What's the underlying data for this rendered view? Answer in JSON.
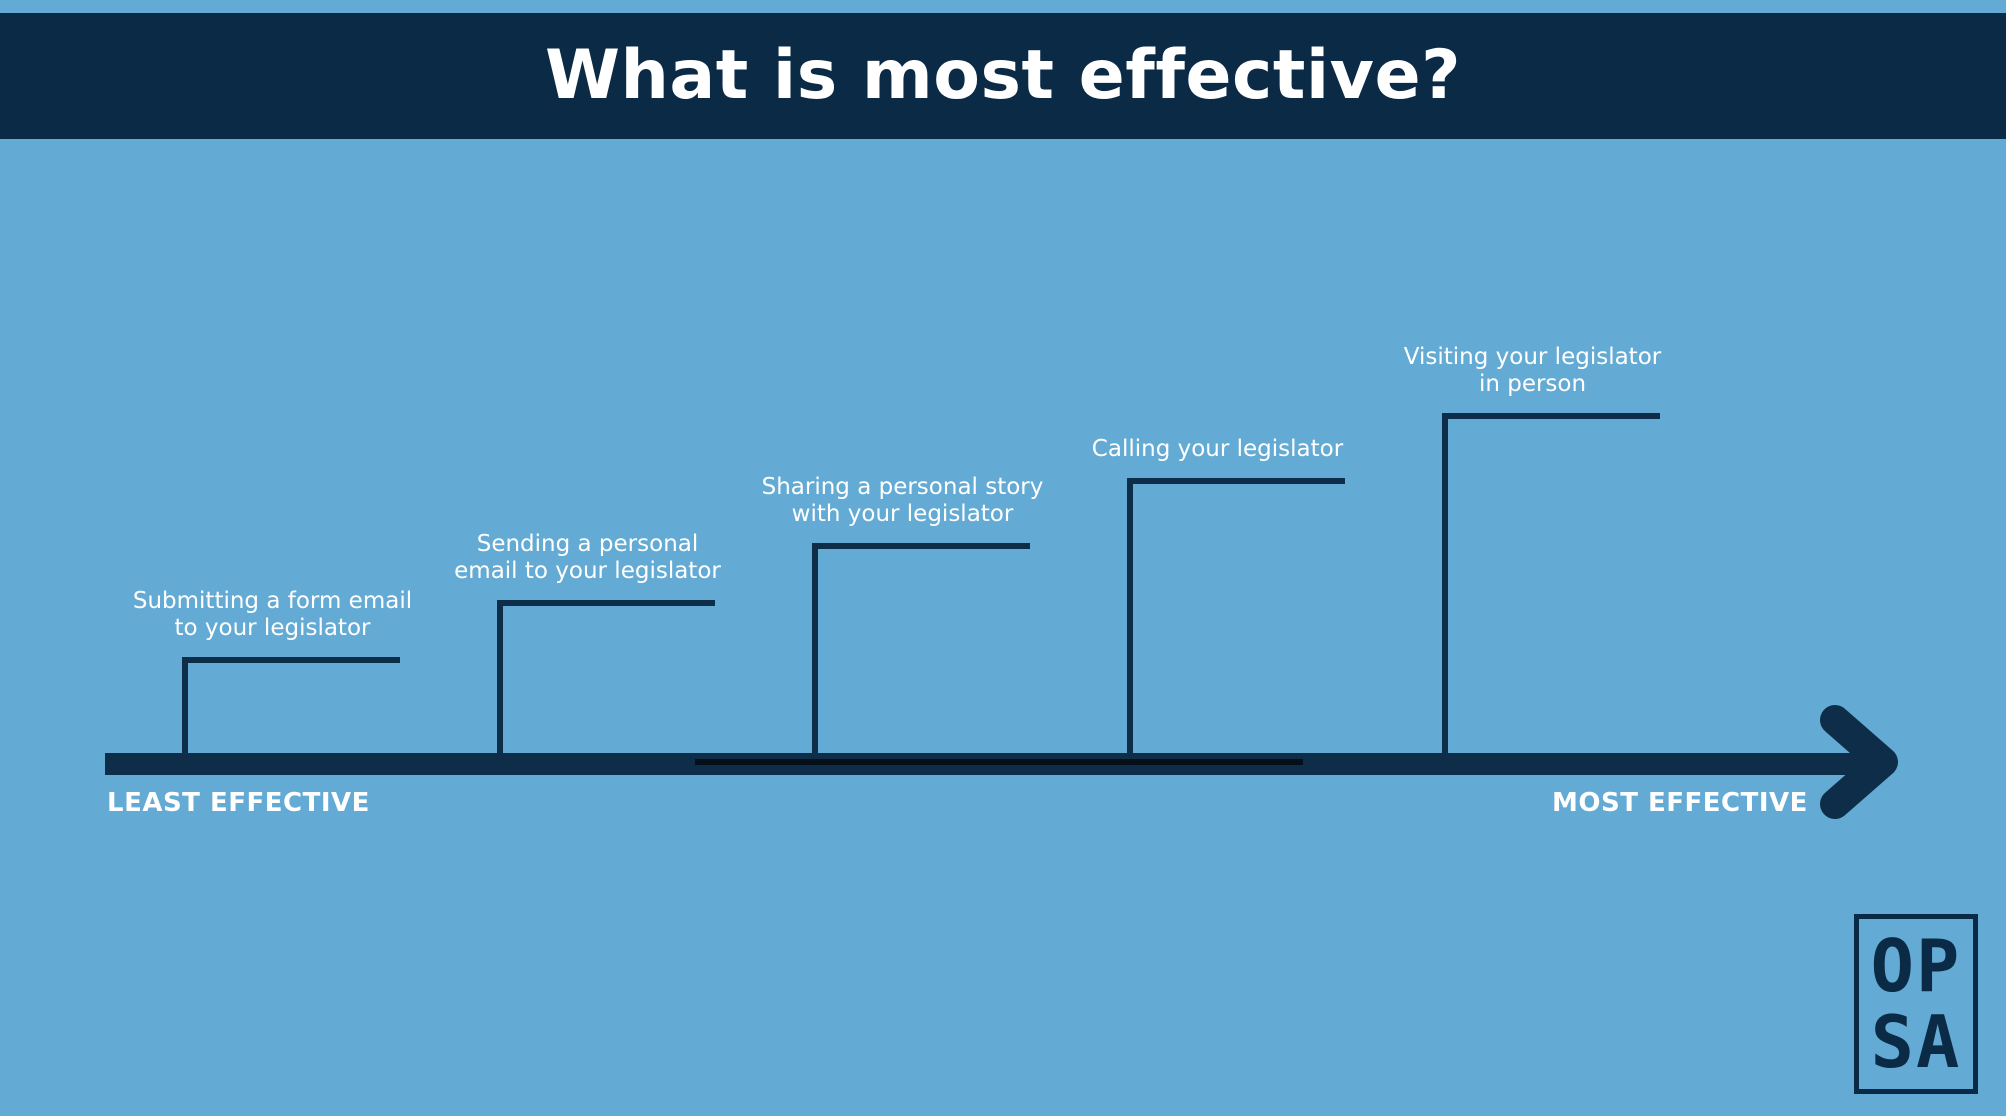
{
  "colors": {
    "background": "#63abd4",
    "title_bar": "#0b2a45",
    "axis": "#0d2d49",
    "text": "#ffffff"
  },
  "title": "What is most effective?",
  "axis": {
    "least_label": "LEAST EFFECTIVE",
    "most_label": "MOST EFFECTIVE"
  },
  "steps": [
    {
      "label": "Submitting a form email\nto your legislator",
      "rank": 1
    },
    {
      "label": "Sending a personal\nemail to your legislator",
      "rank": 2
    },
    {
      "label": "Sharing a personal story\nwith your legislator",
      "rank": 3
    },
    {
      "label": "Calling your legislator",
      "rank": 4
    },
    {
      "label": "Visiting your legislator\nin person",
      "rank": 5
    }
  ],
  "logo": {
    "line1": "OP",
    "line2": "SA"
  }
}
